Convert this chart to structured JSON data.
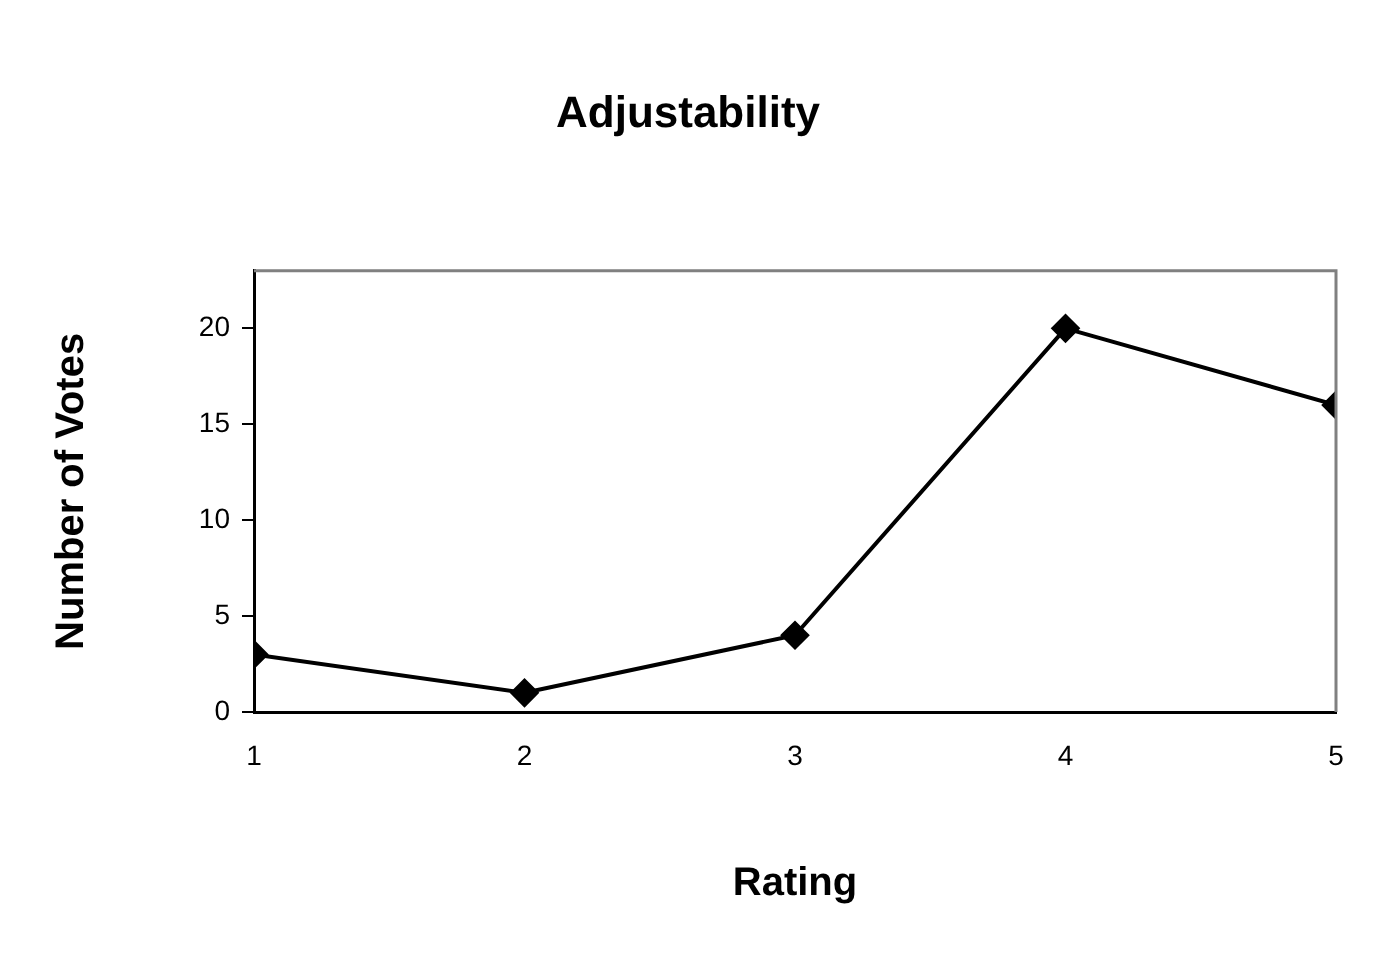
{
  "chart_data": {
    "type": "line",
    "title": "Adjustability",
    "xlabel": "Rating",
    "ylabel": "Number of Votes",
    "x": [
      1,
      2,
      3,
      4,
      5
    ],
    "series": [
      {
        "color": "#000000",
        "values": [
          3,
          1,
          4,
          20,
          16
        ]
      }
    ],
    "xlim": [
      1,
      5
    ],
    "xticks": [
      1,
      2,
      3,
      4,
      5
    ],
    "ylim": [
      0,
      23
    ],
    "yticks": [
      0,
      5,
      10,
      15,
      20
    ],
    "grid": false,
    "legend": false,
    "marker": "diamond",
    "line_style": "solid"
  }
}
